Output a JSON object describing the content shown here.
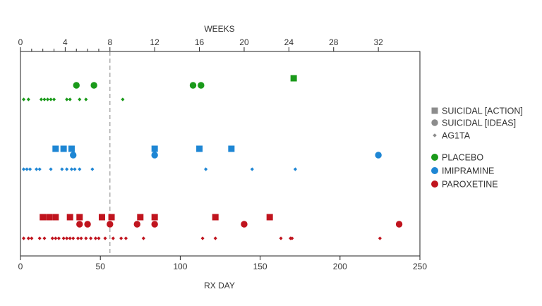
{
  "chart_data": {
    "type": "scatter",
    "top_axis": {
      "label": "WEEKS",
      "major_ticks": [
        0,
        4,
        8,
        12,
        16,
        20,
        24,
        28,
        32
      ],
      "tick_labels": [
        "0",
        "4",
        "8",
        "12",
        "16",
        "20",
        "24",
        "28",
        "32"
      ],
      "minor_ticks": [
        1,
        2,
        3,
        5,
        6,
        7
      ]
    },
    "bottom_axis": {
      "label": "RX DAY",
      "ticks": [
        0,
        50,
        100,
        150,
        200,
        250
      ],
      "tick_labels": [
        "0",
        "50",
        "100",
        "150",
        "200",
        "250"
      ],
      "xlim": [
        0,
        250
      ]
    },
    "reference_line": {
      "x": 56,
      "style": "dashed"
    },
    "legend_position": "right",
    "marker_legend": [
      {
        "shape": "square",
        "label": "SUICIDAL [ACTION]"
      },
      {
        "shape": "circle",
        "label": "SUICIDAL [IDEAS]"
      },
      {
        "shape": "diamond",
        "label": "AG1TA"
      }
    ],
    "groups": [
      {
        "name": "PLACEBO",
        "color": "#1a9a1a",
        "action": [
          171
        ],
        "ideas": [
          35,
          46,
          108,
          113
        ],
        "agita": [
          2,
          5,
          13,
          15,
          17,
          19,
          21,
          29,
          31,
          37,
          41,
          64
        ]
      },
      {
        "name": "IMIPRAMINE",
        "color": "#1e86d4",
        "action": [
          22,
          27,
          32,
          84,
          112,
          132
        ],
        "ideas": [
          33,
          84,
          224
        ],
        "agita": [
          2,
          4,
          6,
          10,
          12,
          19,
          26,
          29,
          32,
          34,
          37,
          45,
          116,
          145,
          172
        ]
      },
      {
        "name": "PAROXETINE",
        "color": "#c0141e",
        "action": [
          14,
          18,
          22,
          31,
          37,
          51,
          57,
          75,
          84,
          122,
          156
        ],
        "ideas": [
          37,
          42,
          56,
          73,
          84,
          140,
          237
        ],
        "agita": [
          2,
          5,
          7,
          12,
          15,
          20,
          22,
          24,
          27,
          29,
          31,
          33,
          36,
          38,
          41,
          44,
          47,
          49,
          53,
          58,
          63,
          66,
          77,
          114,
          122,
          163,
          169,
          170,
          225
        ]
      }
    ]
  }
}
